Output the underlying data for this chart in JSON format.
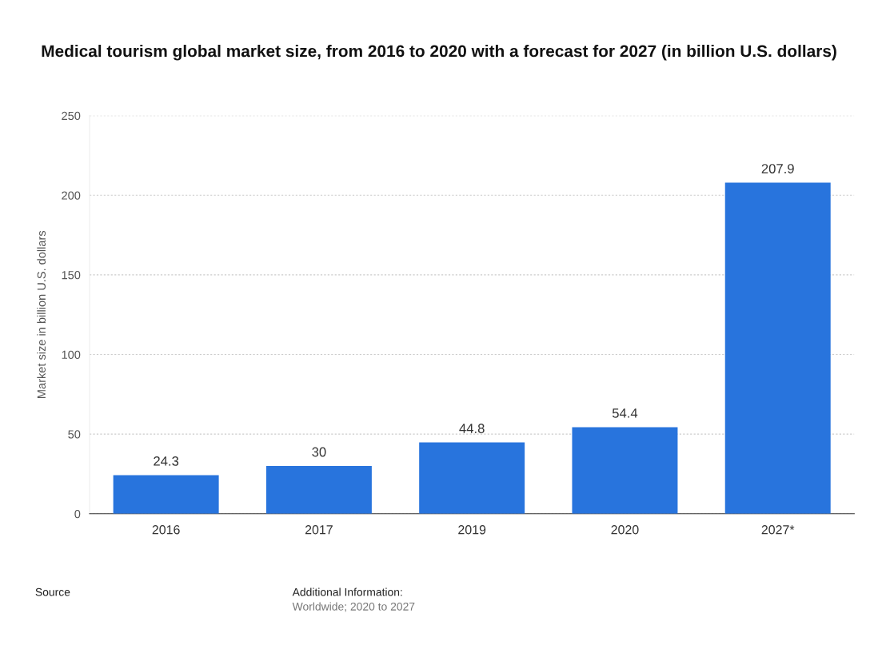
{
  "chart_data": {
    "type": "bar",
    "title": "Medical tourism global market size, from 2016 to 2020 with a forecast for 2027 (in billion U.S. dollars)",
    "ylabel": "Market size in billion U.S. dollars",
    "categories": [
      "2016",
      "2017",
      "2019",
      "2020",
      "2027*"
    ],
    "values": [
      24.3,
      30,
      44.8,
      54.4,
      207.9
    ],
    "color": "#2874dd",
    "ylim": [
      0,
      250
    ],
    "yticks": [
      0,
      50,
      100,
      150,
      200,
      250
    ],
    "grid": "y",
    "data_labels": true,
    "annotations": [
      "Source",
      "Additional Information:",
      "Worldwide; 2020 to 2027"
    ]
  }
}
